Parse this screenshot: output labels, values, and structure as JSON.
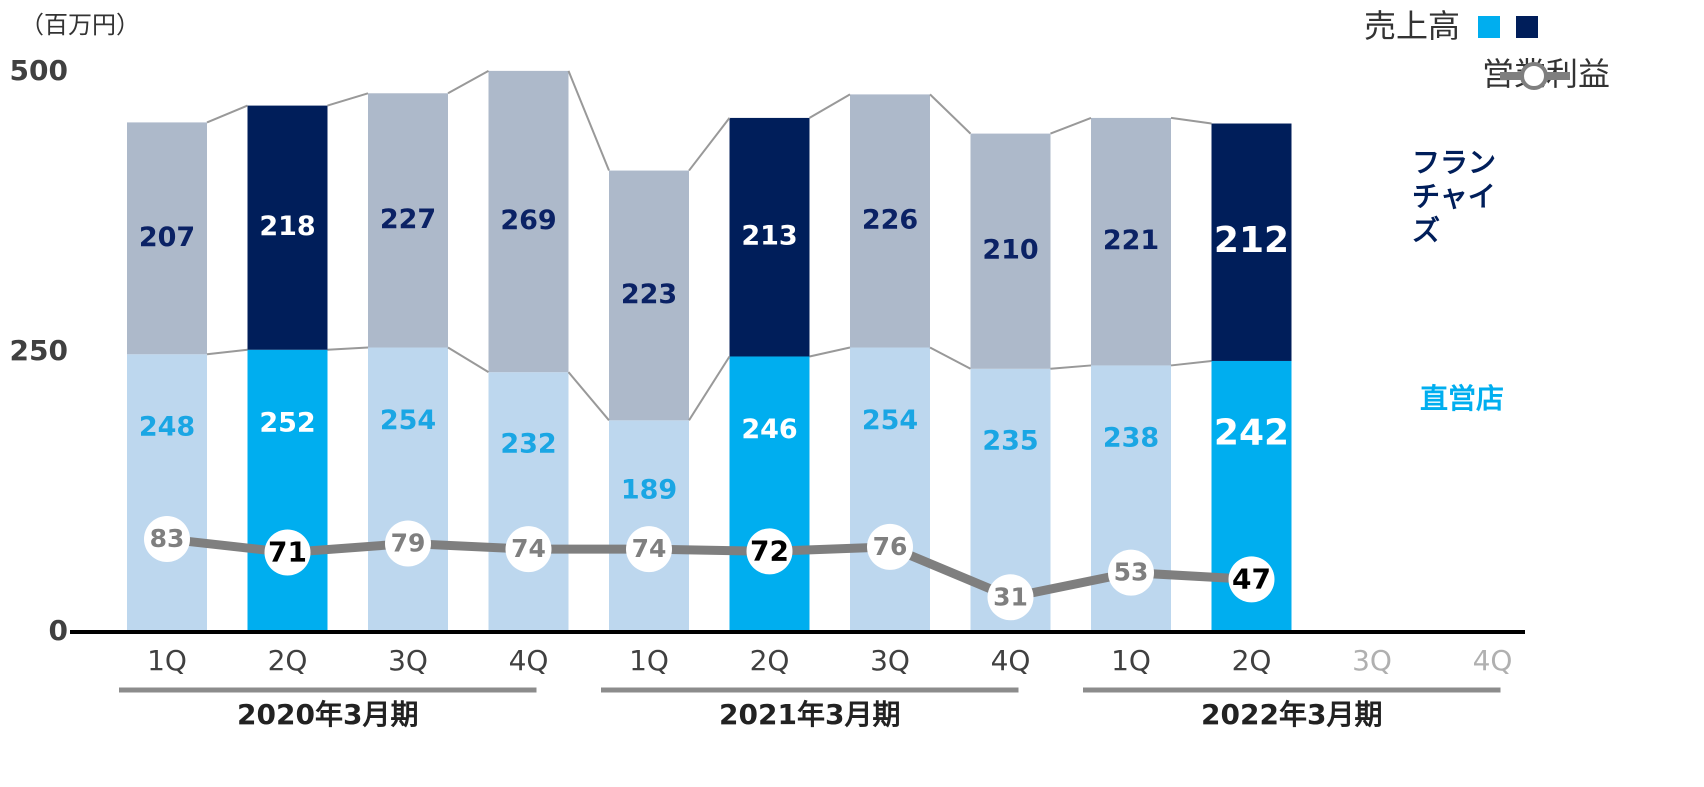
{
  "chart_data": {
    "type": "bar",
    "stacked": true,
    "unit": "（百万円）",
    "categories": [
      "1Q",
      "2Q",
      "3Q",
      "4Q",
      "1Q",
      "2Q",
      "3Q",
      "4Q",
      "1Q",
      "2Q",
      "3Q",
      "4Q"
    ],
    "periods": [
      "2020年3月期",
      "2021年3月期",
      "2022年3月期"
    ],
    "legend_title": "売上高",
    "highlight": [
      1,
      5,
      9
    ],
    "series": [
      {
        "name": "直営店",
        "color": "#bdd7ee",
        "highlight_color": "#00aeef",
        "label_color": "#1aa6e4",
        "values": [
          248,
          252,
          254,
          232,
          189,
          246,
          254,
          235,
          238,
          242,
          null,
          null
        ]
      },
      {
        "name": "フランチャイズ",
        "color": "#adb9ca",
        "highlight_color": "#001e5a",
        "label_color": "#0b2265",
        "values": [
          207,
          218,
          227,
          269,
          223,
          213,
          226,
          210,
          221,
          212,
          null,
          null
        ]
      }
    ],
    "line": {
      "name": "営業利益",
      "color": "#7f7f7f",
      "values": [
        83,
        71,
        79,
        74,
        74,
        72,
        76,
        31,
        53,
        47,
        null,
        null
      ]
    },
    "ylim": [
      0,
      500
    ],
    "yticks": [
      0,
      250,
      500
    ]
  }
}
